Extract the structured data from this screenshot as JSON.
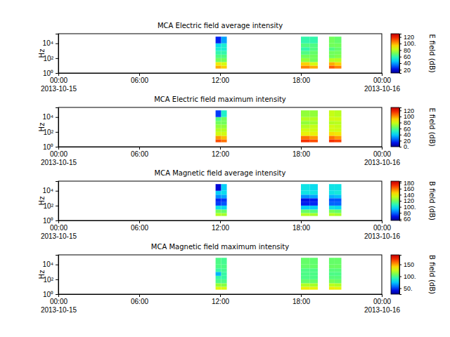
{
  "chart_data": [
    {
      "type": "heatmap",
      "title": "MCA  Electric field average intensity",
      "y_label": "Hz",
      "log": "y",
      "xlim": [
        "2013-10-15 00:00",
        "2013-10-16 00:00"
      ],
      "xticks": [
        {
          "value": "2013-10-15 00:00",
          "label": "00:00\n2013-10-15"
        },
        {
          "value": "2013-10-15 06:00",
          "label": "06:00"
        },
        {
          "value": "2013-10-15 12:00",
          "label": "12:00"
        },
        {
          "value": "2013-10-15 18:00",
          "label": "18:00"
        },
        {
          "value": "2013-10-16 00:00",
          "label": "00:00\n2013-10-16"
        }
      ],
      "ylim": [
        1,
        200000
      ],
      "yticks": [
        {
          "value": 1,
          "label": "10⁰"
        },
        {
          "value": 100,
          "label": "10²"
        },
        {
          "value": 10000,
          "label": "10⁴"
        }
      ],
      "y_edges": [
        4,
        10,
        30,
        100,
        300,
        1000,
        3000,
        10000,
        80000
      ],
      "segments": [
        {
          "x": [
            "2013-10-15 11:40",
            "2013-10-15 12:05",
            "2013-10-15 12:30"
          ],
          "cells": [
            [
              100,
              90,
              70,
              65,
              60,
              55,
              50,
              25
            ],
            [
              95,
              85,
              70,
              65,
              60,
              55,
              55,
              40
            ]
          ]
        },
        {
          "x": [
            "2013-10-15 18:00",
            "2013-10-15 18:40",
            "2013-10-15 19:15"
          ],
          "cells": [
            [
              105,
              95,
              75,
              70,
              65,
              60,
              65,
              60
            ],
            [
              100,
              85,
              70,
              70,
              68,
              65,
              65,
              60
            ]
          ]
        },
        {
          "x": [
            "2013-10-15 20:05",
            "2013-10-15 20:30",
            "2013-10-15 21:00"
          ],
          "cells": [
            [
              110,
              100,
              80,
              70,
              70,
              65,
              70,
              70
            ],
            [
              105,
              95,
              80,
              72,
              70,
              68,
              70,
              68
            ]
          ]
        }
      ],
      "colorbar": {
        "label": "E field (dB)",
        "range": [
          10,
          130
        ],
        "ticks": [
          20,
          40,
          60,
          80,
          {
            "value": 100,
            "label": "100."
          },
          120
        ]
      }
    },
    {
      "type": "heatmap",
      "title": "MCA  Electric field maximum intensity",
      "y_label": "Hz",
      "log": "y",
      "xlim": [
        "2013-10-15 00:00",
        "2013-10-16 00:00"
      ],
      "xticks": [
        {
          "value": "2013-10-15 00:00",
          "label": "00:00\n2013-10-15"
        },
        {
          "value": "2013-10-15 06:00",
          "label": "06:00"
        },
        {
          "value": "2013-10-15 12:00",
          "label": "12:00"
        },
        {
          "value": "2013-10-15 18:00",
          "label": "18:00"
        },
        {
          "value": "2013-10-16 00:00",
          "label": "00:00\n2013-10-16"
        }
      ],
      "ylim": [
        1,
        200000
      ],
      "yticks": [
        {
          "value": 1,
          "label": "10⁰"
        },
        {
          "value": 100,
          "label": "10²"
        },
        {
          "value": 10000,
          "label": "10⁴"
        }
      ],
      "y_edges": [
        4,
        10,
        30,
        100,
        300,
        1000,
        3000,
        10000,
        80000
      ],
      "segments": [
        {
          "x": [
            "2013-10-15 11:40",
            "2013-10-15 12:05",
            "2013-10-15 12:30"
          ],
          "cells": [
            [
              110,
              100,
              80,
              75,
              70,
              65,
              60,
              20
            ],
            [
              105,
              95,
              80,
              75,
              70,
              65,
              65,
              50
            ]
          ]
        },
        {
          "x": [
            "2013-10-15 18:00",
            "2013-10-15 18:40",
            "2013-10-15 19:15"
          ],
          "cells": [
            [
              115,
              105,
              85,
              80,
              75,
              70,
              75,
              70
            ],
            [
              110,
              100,
              85,
              80,
              78,
              72,
              75,
              70
            ]
          ]
        },
        {
          "x": [
            "2013-10-15 20:05",
            "2013-10-15 20:30",
            "2013-10-15 21:00"
          ],
          "cells": [
            [
              115,
              105,
              90,
              80,
              80,
              75,
              80,
              78
            ],
            [
              112,
              100,
              88,
              80,
              78,
              76,
              80,
              76
            ]
          ]
        }
      ],
      "colorbar": {
        "label": "E field (dB)",
        "range": [
          0,
          130
        ],
        "ticks": [
          {
            "value": 0,
            "label": "0."
          },
          20,
          40,
          60,
          80,
          100,
          120
        ]
      }
    },
    {
      "type": "heatmap",
      "title": "MCA  Magnetic field average intensity",
      "y_label": "Hz",
      "log": "y",
      "xlim": [
        "2013-10-15 00:00",
        "2013-10-16 00:00"
      ],
      "xticks": [
        {
          "value": "2013-10-15 00:00",
          "label": "00:00\n2013-10-15"
        },
        {
          "value": "2013-10-15 06:00",
          "label": "06:00"
        },
        {
          "value": "2013-10-15 12:00",
          "label": "12:00"
        },
        {
          "value": "2013-10-15 18:00",
          "label": "18:00"
        },
        {
          "value": "2013-10-16 00:00",
          "label": "00:00\n2013-10-16"
        }
      ],
      "ylim": [
        1,
        200000
      ],
      "yticks": [
        {
          "value": 1,
          "label": "10⁰"
        },
        {
          "value": 100,
          "label": "10²"
        },
        {
          "value": 10000,
          "label": "10⁴"
        }
      ],
      "y_edges": [
        4,
        10,
        30,
        100,
        300,
        1000,
        3000,
        10000,
        80000
      ],
      "segments": [
        {
          "x": [
            "2013-10-15 11:40",
            "2013-10-15 12:05",
            "2013-10-15 12:30"
          ],
          "cells": [
            [
              130,
              120,
              100,
              75,
              72,
              85,
              95,
              65
            ],
            [
              128,
              118,
              98,
              78,
              74,
              88,
              98,
              95
            ]
          ]
        },
        {
          "x": [
            "2013-10-15 18:00",
            "2013-10-15 18:40",
            "2013-10-15 19:15"
          ],
          "cells": [
            [
              130,
              118,
              95,
              70,
              68,
              85,
              100,
              100
            ],
            [
              128,
              115,
              95,
              72,
              70,
              88,
              100,
              98
            ]
          ]
        },
        {
          "x": [
            "2013-10-15 20:05",
            "2013-10-15 20:30",
            "2013-10-15 21:00"
          ],
          "cells": [
            [
              130,
              120,
              100,
              80,
              78,
              90,
              100,
              100
            ],
            [
              128,
              118,
              98,
              80,
              78,
              92,
              102,
              100
            ]
          ]
        }
      ],
      "colorbar": {
        "label": "B field (dB)",
        "range": [
          55,
          185
        ],
        "ticks": [
          60,
          80,
          {
            "value": 100,
            "label": "100."
          },
          120,
          140,
          160,
          180
        ]
      }
    },
    {
      "type": "heatmap",
      "title": "MCA  Magnetic field maximum intensity",
      "y_label": "Hz",
      "log": "y",
      "xlim": [
        "2013-10-15 00:00",
        "2013-10-16 00:00"
      ],
      "xticks": [
        {
          "value": "2013-10-15 00:00",
          "label": "00:00\n2013-10-15"
        },
        {
          "value": "2013-10-15 06:00",
          "label": "06:00"
        },
        {
          "value": "2013-10-15 12:00",
          "label": "12:00"
        },
        {
          "value": "2013-10-15 18:00",
          "label": "18:00"
        },
        {
          "value": "2013-10-16 00:00",
          "label": "00:00\n2013-10-16"
        }
      ],
      "ylim": [
        1,
        200000
      ],
      "yticks": [
        {
          "value": 1,
          "label": "10⁰"
        },
        {
          "value": 100,
          "label": "10²"
        },
        {
          "value": 10000,
          "label": "10⁴"
        }
      ],
      "y_edges": [
        4,
        10,
        30,
        100,
        300,
        1000,
        3000,
        10000,
        80000
      ],
      "segments": [
        {
          "x": [
            "2013-10-15 11:40",
            "2013-10-15 12:05",
            "2013-10-15 12:30"
          ],
          "cells": [
            [
              130,
              115,
              100,
              95,
              70,
              95,
              100,
              100
            ],
            [
              128,
              112,
              100,
              95,
              95,
              98,
              100,
              98
            ]
          ]
        },
        {
          "x": [
            "2013-10-15 18:00",
            "2013-10-15 18:40",
            "2013-10-15 19:15"
          ],
          "cells": [
            [
              135,
              120,
              105,
              100,
              100,
              100,
              105,
              105
            ],
            [
              132,
              118,
              105,
              100,
              100,
              100,
              105,
              104
            ]
          ]
        },
        {
          "x": [
            "2013-10-15 20:05",
            "2013-10-15 20:30",
            "2013-10-15 21:00"
          ],
          "cells": [
            [
              135,
              122,
              108,
              102,
              100,
              102,
              106,
              105
            ],
            [
              132,
              120,
              106,
              102,
              100,
              102,
              106,
              105
            ]
          ]
        }
      ],
      "colorbar": {
        "label": "B field (dB)",
        "range": [
          25,
          190
        ],
        "ticks": [
          {
            "value": 50,
            "label": "50."
          },
          {
            "value": 100,
            "label": "100."
          },
          150
        ]
      }
    }
  ]
}
